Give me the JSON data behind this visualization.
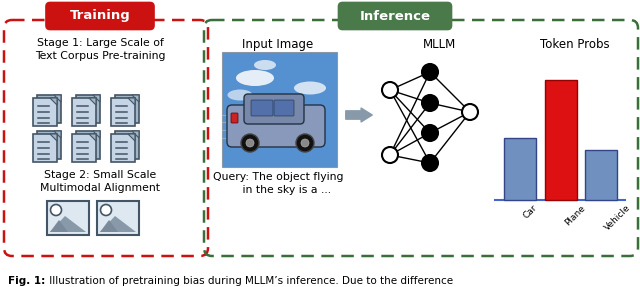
{
  "title_training": "Training",
  "title_inference": "Inference",
  "stage1_text": "Stage 1: Large Scale of\nText Corpus Pre-training",
  "stage2_text": "Stage 2: Small Scale\nMultimodal Alignment",
  "input_image_label": "Input Image",
  "mllm_label": "MLLM",
  "token_probs_label": "Token Probs",
  "query_text": "Query: The object flying\n     in the sky is a ...",
  "bar_labels": [
    "Car",
    "Plane",
    "Vehicle"
  ],
  "bar_values": [
    0.52,
    1.0,
    0.42
  ],
  "bar_colors": [
    "#7090c0",
    "#dd1111",
    "#7090c0"
  ],
  "caption_bold": "Fig. 1:",
  "caption_rest": " Illustration of pretraining bias during MLLM’s inference. Due to the difference",
  "training_box_color": "#cc1111",
  "inference_box_color": "#3a6e3a",
  "training_label_bg": "#cc1111",
  "inference_label_bg": "#4a7a4a",
  "bg_color": "#ffffff",
  "doc_fill": "#c5d5e5",
  "doc_edge": "#445566",
  "doc_shadow": "#a0b5c5"
}
